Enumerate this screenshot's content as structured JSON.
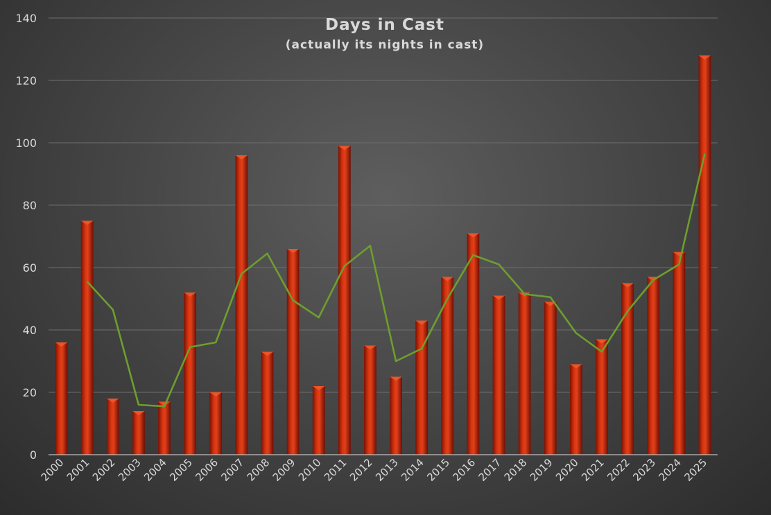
{
  "chart_data": {
    "type": "bar",
    "title": "Days in Cast",
    "subtitle": "(actually its nights in cast)",
    "xlabel": "",
    "ylabel": "",
    "ylim": [
      0,
      140
    ],
    "yticks": [
      0,
      20,
      40,
      60,
      80,
      100,
      120,
      140
    ],
    "grid": true,
    "legend": "none",
    "categories": [
      "2000",
      "2001",
      "2002",
      "2003",
      "2004",
      "2005",
      "2006",
      "2007",
      "2008",
      "2009",
      "2010",
      "2011",
      "2012",
      "2013",
      "2014",
      "2015",
      "2016",
      "2017",
      "2018",
      "2019",
      "2020",
      "2021",
      "2022",
      "2023",
      "2024",
      "2025"
    ],
    "series": [
      {
        "type": "bar",
        "color": "#c42a0c",
        "values": [
          36,
          75,
          18,
          14,
          17,
          52,
          20,
          96,
          33,
          66,
          22,
          99,
          35,
          25,
          43,
          57,
          71,
          51,
          52,
          49,
          29,
          37,
          55,
          57,
          65,
          128
        ]
      },
      {
        "type": "line",
        "color": "#6e9e2e",
        "values": [
          null,
          55.5,
          46.5,
          16,
          15.5,
          34.5,
          36,
          58,
          64.5,
          49.5,
          44,
          60.5,
          67,
          30,
          34,
          50,
          64,
          61,
          51.5,
          50.5,
          39,
          33,
          46,
          56,
          61,
          96.5
        ]
      }
    ]
  }
}
